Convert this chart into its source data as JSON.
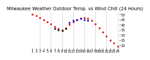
{
  "title": "Milwaukee Weather Outdoor Temp. vs Wind Chill (24 Hours)",
  "hours": [
    1,
    2,
    3,
    4,
    5,
    6,
    7,
    8,
    9,
    10,
    11,
    12,
    13,
    14,
    15,
    16,
    17,
    18,
    19,
    20,
    21,
    22,
    23,
    24
  ],
  "outdoor_temp": [
    50,
    49,
    47,
    45,
    43,
    41,
    38,
    36,
    35,
    37,
    40,
    43,
    45,
    46,
    47,
    46,
    44,
    41,
    37,
    33,
    29,
    25,
    22,
    19
  ],
  "wind_chill": [
    null,
    null,
    null,
    null,
    null,
    null,
    null,
    null,
    null,
    null,
    42,
    44,
    45,
    46,
    45,
    44,
    null,
    null,
    null,
    null,
    null,
    null,
    null,
    null
  ],
  "black_temp": [
    null,
    null,
    null,
    null,
    null,
    null,
    36,
    35,
    34,
    36,
    null,
    null,
    null,
    null,
    null,
    null,
    null,
    null,
    null,
    null,
    null,
    null,
    null,
    null
  ],
  "outdoor_color": "#dd0000",
  "wind_chill_color": "#0000cc",
  "black_color": "#111111",
  "bg_color": "#ffffff",
  "ylim": [
    17,
    53
  ],
  "yticks": [
    20,
    25,
    30,
    35,
    40,
    45,
    50
  ],
  "grid_positions": [
    3,
    6,
    9,
    12,
    15,
    18,
    21,
    24
  ],
  "grid_color": "#aaaaaa",
  "xlim": [
    0.5,
    24.5
  ],
  "xtick_positions": [
    1,
    2,
    3,
    4,
    5,
    6,
    7,
    8,
    9,
    10,
    11,
    12,
    13,
    14,
    15,
    16,
    17,
    18,
    19,
    20,
    21,
    22,
    23,
    24
  ],
  "title_fontsize": 4.8,
  "tick_fontsize": 3.5,
  "markersize": 1.8
}
